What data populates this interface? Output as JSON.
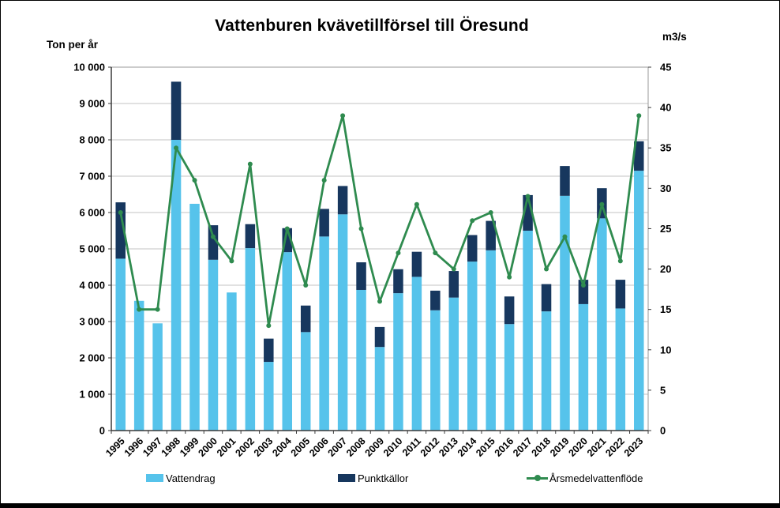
{
  "chart_data": {
    "type": "bar",
    "subtype": "stacked-bars-with-line-overlay",
    "title": "Vattenburen kvävetillförsel till Öresund",
    "categories": [
      1995,
      1996,
      1997,
      1998,
      1999,
      2000,
      2001,
      2002,
      2003,
      2004,
      2005,
      2006,
      2007,
      2008,
      2009,
      2010,
      2011,
      2012,
      2013,
      2014,
      2015,
      2016,
      2017,
      2018,
      2019,
      2020,
      2021,
      2022,
      2023
    ],
    "series": [
      {
        "name": "Vattendrag",
        "axis": "left",
        "values": [
          4730,
          3570,
          2950,
          8000,
          6240,
          4700,
          3800,
          5020,
          1890,
          4910,
          2710,
          5340,
          5950,
          3870,
          2300,
          3780,
          4230,
          3310,
          3660,
          4650,
          4960,
          2930,
          5500,
          3280,
          6460,
          3480,
          5840,
          3360,
          7150
        ]
      },
      {
        "name": "Punktkällor",
        "axis": "left",
        "values": [
          1550,
          0,
          0,
          1600,
          0,
          950,
          0,
          660,
          640,
          660,
          730,
          760,
          780,
          760,
          550,
          660,
          690,
          540,
          730,
          730,
          810,
          760,
          980,
          750,
          820,
          670,
          830,
          790,
          810
        ]
      }
    ],
    "line_series": {
      "name": "Årsmedelvattenflöde",
      "axis": "right",
      "values": [
        27,
        15,
        15,
        35,
        31,
        24,
        21,
        33,
        13,
        25,
        18,
        31,
        39,
        25,
        16,
        22,
        28,
        22,
        20,
        26,
        27,
        19,
        29,
        20,
        24,
        18,
        28,
        21,
        39
      ]
    },
    "left_axis": {
      "label": "Ton per år",
      "min": 0,
      "max": 10000,
      "step": 1000,
      "tick_labels": [
        "0",
        "1 000",
        "2 000",
        "3 000",
        "4 000",
        "5 000",
        "6 000",
        "7 000",
        "8 000",
        "9 000",
        "10 000"
      ]
    },
    "right_axis": {
      "label": "m3/s",
      "min": 0,
      "max": 45,
      "step": 5,
      "tick_labels": [
        "0",
        "5",
        "10",
        "15",
        "20",
        "25",
        "30",
        "35",
        "40",
        "45"
      ]
    },
    "grid": true,
    "legend_position": "bottom",
    "legend": [
      {
        "label": "Vattendrag",
        "marker": "square",
        "color": "#56C3EB"
      },
      {
        "label": "Punktkällor",
        "marker": "square",
        "color": "#17375E"
      },
      {
        "label": "Årsmedelvattenflöde",
        "marker": "line-dot",
        "color": "#2F8B4F"
      }
    ],
    "colors": {
      "vattendrag": "#56C3EB",
      "punktkallor": "#17375E",
      "flow_line": "#2F8B4F",
      "gridline": "#C3C3C3",
      "frame": "#9A9A9A",
      "axis": "#3A3A3A",
      "text": "#000000"
    }
  }
}
